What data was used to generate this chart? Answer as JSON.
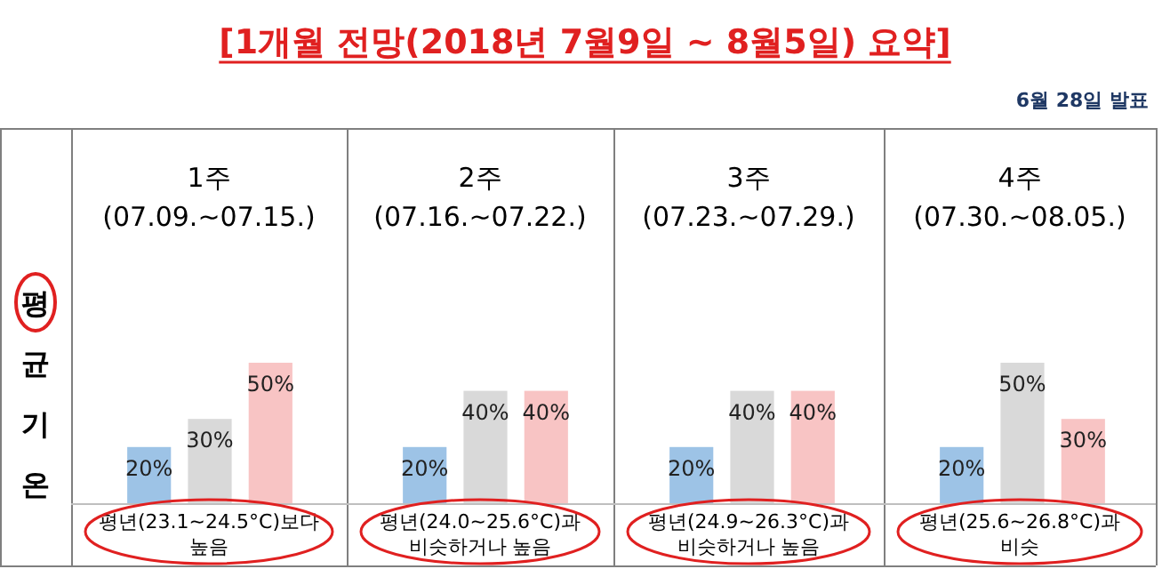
{
  "chart_data": [
    {
      "type": "other",
      "title": "[1개월 전망(2018년 7월9일 ~ 8월5일) 요약]",
      "subtitle": "6월 28일 발표"
    },
    {
      "type": "bar",
      "title": "1주\n(07.09.~07.15.)",
      "ylabel": "평균기온",
      "categories": [
        null,
        null,
        null
      ],
      "values": [
        20,
        30,
        50
      ],
      "value_labels": [
        "20%",
        "30%",
        "50%"
      ],
      "colors": [
        "#9dc3e6",
        "#d9d9d9",
        "#f8c4c4"
      ],
      "annotations": [
        "평년(23.1~24.5°C)보다\n높음"
      ]
    },
    {
      "type": "bar",
      "title": "2주\n(07.16.~07.22.)",
      "categories": [
        null,
        null,
        null
      ],
      "values": [
        20,
        40,
        40
      ],
      "value_labels": [
        "20%",
        "40%",
        "40%"
      ],
      "colors": [
        "#9dc3e6",
        "#d9d9d9",
        "#f8c4c4"
      ],
      "annotations": [
        "평년(24.0~25.6°C)과\n비슷하거나 높음"
      ]
    },
    {
      "type": "bar",
      "title": "3주\n(07.23.~07.29.)",
      "categories": [
        null,
        null,
        null
      ],
      "values": [
        20,
        40,
        40
      ],
      "value_labels": [
        "20%",
        "40%",
        "40%"
      ],
      "colors": [
        "#9dc3e6",
        "#d9d9d9",
        "#f8c4c4"
      ],
      "annotations": [
        "평년(24.9~26.3°C)과\n비슷하거나 높음"
      ]
    },
    {
      "type": "bar",
      "title": "4주\n(07.30.~08.05.)",
      "categories": [
        null,
        null,
        null
      ],
      "values": [
        20,
        50,
        30
      ],
      "value_labels": [
        "20%",
        "50%",
        "30%"
      ],
      "colors": [
        "#9dc3e6",
        "#d9d9d9",
        "#f8c4c4"
      ],
      "annotations": [
        "평년(25.6~26.8°C)과\n비슷"
      ]
    }
  ]
}
